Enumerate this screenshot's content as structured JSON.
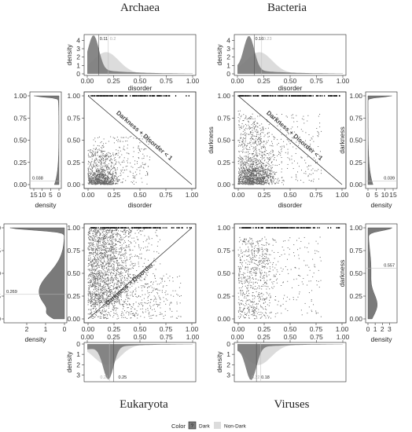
{
  "titles": {
    "archaea": "Archaea",
    "bacteria": "Bacteria",
    "eukaryota": "Eukaryota",
    "viruses": "Viruses"
  },
  "legend": {
    "title": "Color",
    "swatch_label": "?",
    "dark": "Dark",
    "nondark": "Non-Dark"
  },
  "colors": {
    "dark": "#7a7a7a",
    "nondark": "#dcdcdc",
    "point": "#666666",
    "line": "#222222"
  },
  "axis_labels": {
    "disorder": "disorder",
    "darkness": "darkness",
    "density": "density"
  },
  "chart_data": [
    {
      "panel": "archaea-scatter",
      "type": "scatter",
      "xlabel": "disorder",
      "ylabel": "darkness",
      "xlim": [
        0,
        1
      ],
      "ylim": [
        0,
        1
      ],
      "xticks": [
        "0.00",
        "0.25",
        "0.50",
        "0.75",
        "1.00"
      ],
      "yticks": [
        "0.00",
        "0.25",
        "0.50",
        "0.75",
        "1.00"
      ],
      "diagonal": "descending",
      "annotation": "Darkness + Disorder < 1"
    },
    {
      "panel": "bacteria-scatter",
      "type": "scatter",
      "xlabel": "disorder",
      "ylabel": "darkness",
      "xlim": [
        0,
        1
      ],
      "ylim": [
        0,
        1
      ],
      "xticks": [
        "0.00",
        "0.25",
        "0.50",
        "0.75",
        "1.00"
      ],
      "yticks": [
        "0.00",
        "0.25",
        "0.50",
        "0.75",
        "1.00"
      ],
      "diagonal": "descending",
      "annotation": "Darkness + Disorder < 1"
    },
    {
      "panel": "eukaryota-scatter",
      "type": "scatter",
      "xlabel": "disorder",
      "ylabel": "darkness",
      "xlim": [
        0,
        1
      ],
      "ylim": [
        0,
        1
      ],
      "xticks": [
        "0.00",
        "0.25",
        "0.50",
        "0.75",
        "1.00"
      ],
      "yticks": [
        "0.00",
        "0.25",
        "0.50",
        "0.75",
        "1.00"
      ],
      "diagonal": "ascending",
      "annotation": "Darkness > Disorder"
    },
    {
      "panel": "viruses-scatter",
      "type": "scatter",
      "xlabel": "disorder",
      "ylabel": "darkness",
      "xlim": [
        0,
        1
      ],
      "ylim": [
        0,
        1
      ],
      "xticks": [
        "0.00",
        "0.25",
        "0.50",
        "0.75",
        "1.00"
      ],
      "yticks": [
        "0.00",
        "0.25",
        "0.50",
        "0.75",
        "1.00"
      ]
    },
    {
      "panel": "archaea-disorder-density",
      "type": "area",
      "xlabel": "disorder",
      "ylabel": "density",
      "xlim": [
        0,
        1
      ],
      "ylim": [
        0,
        4.5
      ],
      "xticks": [
        "0.00",
        "0.25",
        "0.50",
        "0.75",
        "1.00"
      ],
      "yticks": [
        "0",
        "1",
        "2",
        "3",
        "4"
      ],
      "medians": {
        "dark": "0.11",
        "nondark": "0.2"
      }
    },
    {
      "panel": "bacteria-disorder-density",
      "type": "area",
      "xlabel": "disorder",
      "ylabel": "density",
      "xlim": [
        0,
        1
      ],
      "ylim": [
        0,
        4.5
      ],
      "xticks": [
        "0.00",
        "0.25",
        "0.50",
        "0.75",
        "1.00"
      ],
      "yticks": [
        "0",
        "1",
        "2",
        "3",
        "4"
      ],
      "medians": {
        "dark": "0.16",
        "nondark": "0.23"
      }
    },
    {
      "panel": "eukaryota-disorder-density",
      "type": "area",
      "xlabel": "disorder",
      "ylabel": "density",
      "xlim": [
        0,
        1
      ],
      "ylim": [
        0,
        3.5
      ],
      "xticks": [
        "0.00",
        "0.25",
        "0.50",
        "0.75",
        "1.00"
      ],
      "yticks": [
        "0",
        "1",
        "2",
        "3"
      ],
      "medians": {
        "dark": "0.25",
        "nondark": "0.21"
      }
    },
    {
      "panel": "viruses-disorder-density",
      "type": "area",
      "xlabel": "disorder",
      "ylabel": "density",
      "xlim": [
        0,
        1
      ],
      "ylim": [
        0,
        3.5
      ],
      "xticks": [
        "0.00",
        "0.25",
        "0.50",
        "0.75",
        "1.00"
      ],
      "yticks": [
        "0",
        "1",
        "2",
        "3"
      ],
      "medians": {
        "dark": "0.18",
        "nondark": "0.22"
      }
    },
    {
      "panel": "archaea-darkness-density",
      "type": "area",
      "xlabel": "density",
      "ylabel": "darkness",
      "xlim": [
        15,
        0
      ],
      "ylim": [
        0,
        1
      ],
      "xticks": [
        "15",
        "10",
        "5",
        "0"
      ],
      "yticks": [
        "0.00",
        "0.25",
        "0.50",
        "0.75",
        "1.00"
      ],
      "medians": {
        "nondark": "0.038"
      }
    },
    {
      "panel": "bacteria-darkness-density",
      "type": "area",
      "xlabel": "density",
      "ylabel": "darkness",
      "xlim": [
        0,
        15
      ],
      "ylim": [
        0,
        1
      ],
      "xticks": [
        "0",
        "5",
        "10",
        "15"
      ],
      "yticks": [
        "0.00",
        "0.25",
        "0.50",
        "0.75",
        "1.00"
      ],
      "medians": {
        "nondark": "0.039"
      }
    },
    {
      "panel": "eukaryota-darkness-density",
      "type": "area",
      "xlabel": "density",
      "ylabel": "darkness",
      "xlim": [
        3,
        0
      ],
      "ylim": [
        0,
        1
      ],
      "xticks": [
        "2",
        "1",
        "0"
      ],
      "yticks": [
        "0.00",
        "0.25",
        "0.50",
        "0.75",
        "1.00"
      ],
      "medians": {
        "nondark": "0.269"
      }
    },
    {
      "panel": "viruses-darkness-density",
      "type": "area",
      "xlabel": "density",
      "ylabel": "darkness",
      "xlim": [
        0,
        3.5
      ],
      "ylim": [
        0,
        1
      ],
      "xticks": [
        "0",
        "1",
        "2",
        "3"
      ],
      "yticks": [
        "0.00",
        "0.25",
        "0.50",
        "0.75",
        "1.00"
      ],
      "medians": {
        "nondark": "0.557"
      }
    }
  ]
}
